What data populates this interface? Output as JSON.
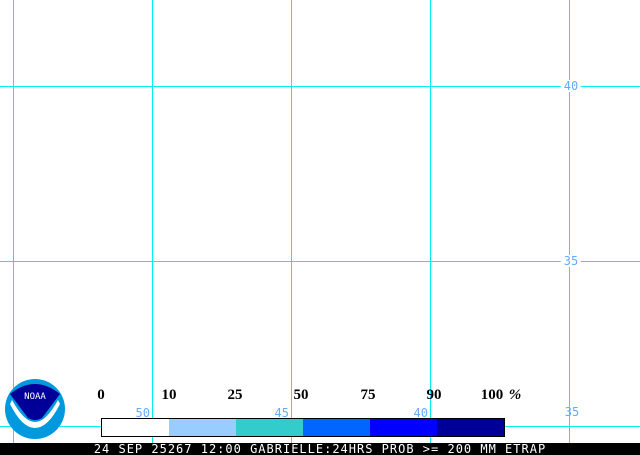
{
  "grid": {
    "latitude_labels": [
      "40",
      "35",
      "35"
    ],
    "longitude_labels": [
      "50",
      "45",
      "40"
    ]
  },
  "legend": {
    "ticks": [
      "0",
      "10",
      "25",
      "50",
      "75",
      "90",
      "100"
    ],
    "unit": "%",
    "colors": [
      "#ffffff",
      "#99ccff",
      "#33cccc",
      "#0066ff",
      "#0000ff",
      "#000099"
    ]
  },
  "logo": {
    "text": "NOAA"
  },
  "footer": {
    "caption": "24 SEP 25267 12:00 GABRIELLE:24HRS PROB >= 200 MM ETRAP"
  }
}
